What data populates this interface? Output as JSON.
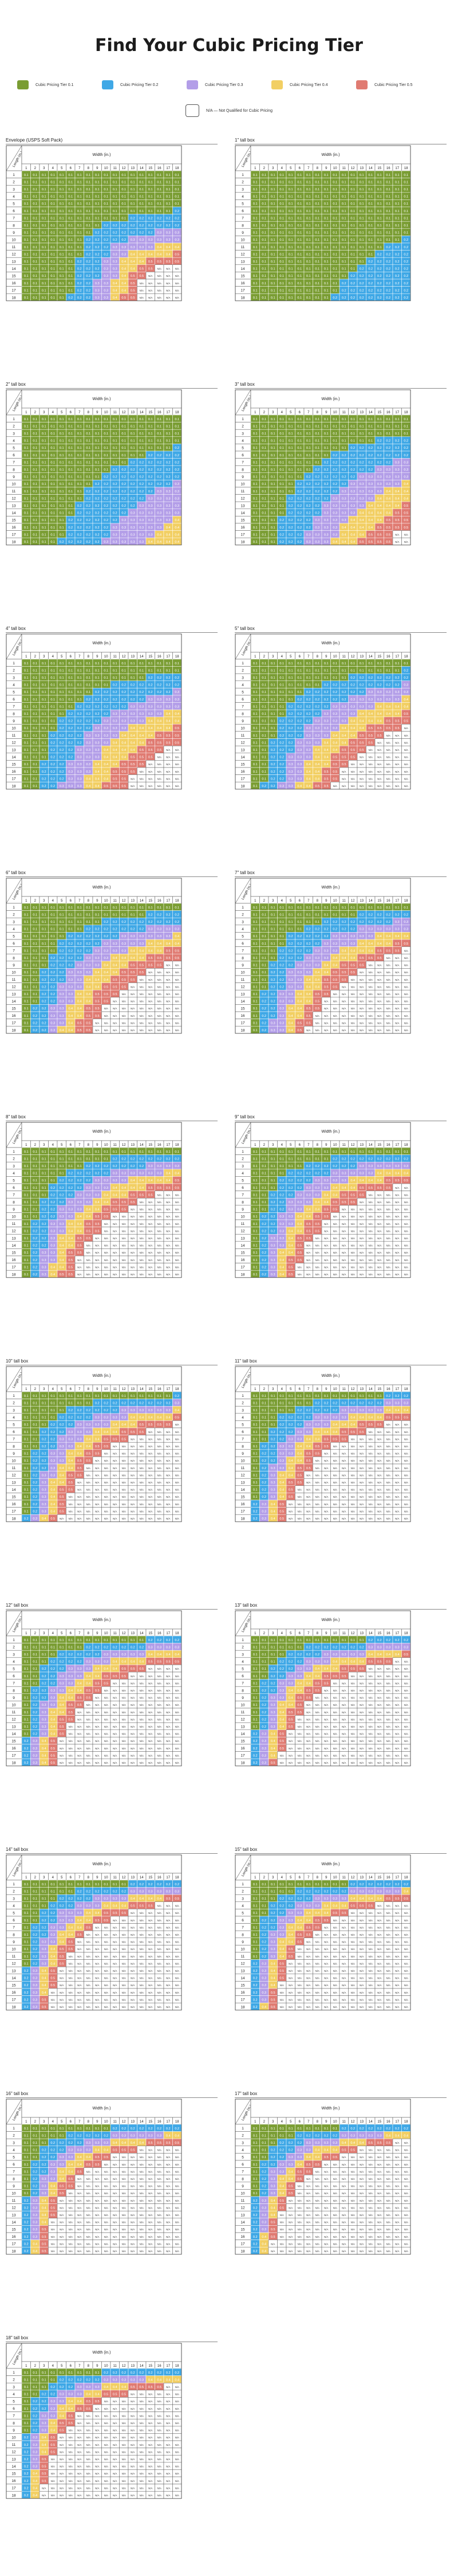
{
  "page": {
    "title": "Find Your Cubic Pricing Tier"
  },
  "legend": {
    "items": [
      {
        "label": "Cubic Pricing Tier 0.1",
        "color": "#7a9d33"
      },
      {
        "label": "Cubic Pricing Tier 0.2",
        "color": "#3fa8e6"
      },
      {
        "label": "Cubic Pricing Tier 0.3",
        "color": "#b39ee8"
      },
      {
        "label": "Cubic Pricing Tier 0.4",
        "color": "#f2cf63"
      },
      {
        "label": "Cubic Pricing Tier 0.5",
        "color": "#e07b72"
      }
    ],
    "na_label": "N/A — Not Qualified for Cubic Pricing"
  },
  "axis": {
    "width_label": "Width (in.)",
    "length_label": "Length (in.)",
    "values": [
      1,
      2,
      3,
      4,
      5,
      6,
      7,
      8,
      9,
      10,
      11,
      12,
      13,
      14,
      15,
      16,
      17,
      18
    ]
  },
  "cell_text": {
    "tier1": "0.1",
    "tier2": "0.2",
    "tier3": "0.3",
    "tier4": "0.4",
    "tier5": "0.5",
    "na": "N/A"
  },
  "charts": [
    {
      "title": "Envelope (USPS Soft Pack)",
      "height": 0
    },
    {
      "title": "1\" tall box",
      "height": 1
    },
    {
      "title": "2\" tall box",
      "height": 2
    },
    {
      "title": "3\" tall box",
      "height": 3
    },
    {
      "title": "4\" tall box",
      "height": 4
    },
    {
      "title": "5\" tall box",
      "height": 5
    },
    {
      "title": "6\" tall box",
      "height": 6
    },
    {
      "title": "7\" tall box",
      "height": 7
    },
    {
      "title": "8\" tall box",
      "height": 8
    },
    {
      "title": "9\" tall box",
      "height": 9
    },
    {
      "title": "10\" tall box",
      "height": 10
    },
    {
      "title": "11\" tall box",
      "height": 11
    },
    {
      "title": "12\" tall box",
      "height": 12
    },
    {
      "title": "13\" tall box",
      "height": 13
    },
    {
      "title": "14\" tall box",
      "height": 14
    },
    {
      "title": "15\" tall box",
      "height": 15
    },
    {
      "title": "16\" tall box",
      "height": 16
    },
    {
      "title": "17\" tall box",
      "height": 17
    },
    {
      "title": "18\" tall box",
      "height": 18
    }
  ],
  "colors": {
    "tier1": "#7a9d33",
    "tier2": "#3fa8e6",
    "tier3": "#b39ee8",
    "tier4": "#f2cf63",
    "tier5": "#e07b72",
    "na": "#ffffff"
  }
}
